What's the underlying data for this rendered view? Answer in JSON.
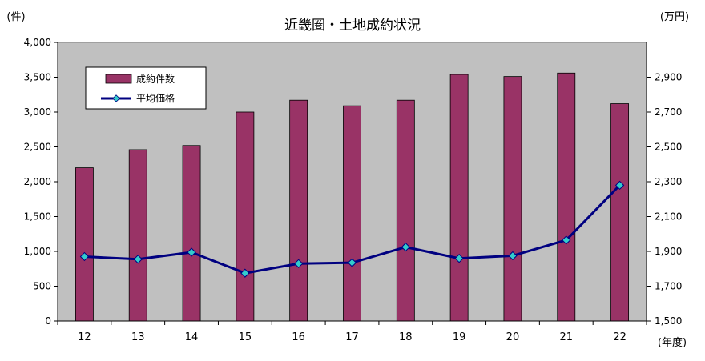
{
  "chart_data": {
    "type": "bar+line",
    "title": "近畿圏・土地成約状況",
    "y_left_unit": "(件)",
    "y_right_unit": "(万円)",
    "x_unit": "(年度)",
    "categories": [
      "12",
      "13",
      "14",
      "15",
      "16",
      "17",
      "18",
      "19",
      "20",
      "21",
      "22"
    ],
    "y_left": {
      "min": 0,
      "max": 4000,
      "ticks": [
        0,
        500,
        1000,
        1500,
        2000,
        2500,
        3000,
        3500,
        4000
      ],
      "tick_labels": [
        "0",
        "500",
        "1,000",
        "1,500",
        "2,000",
        "2,500",
        "3,000",
        "3,500",
        "4,000"
      ]
    },
    "y_right": {
      "min": 1500,
      "max": 3100,
      "ticks": [
        1500,
        1700,
        1900,
        2100,
        2300,
        2500,
        2700,
        2900
      ],
      "tick_labels": [
        "1,500",
        "1,700",
        "1,900",
        "2,100",
        "2,300",
        "2,500",
        "2,700",
        "2,900"
      ]
    },
    "series": [
      {
        "name": "成約件数",
        "type": "bar",
        "axis": "left",
        "color": "#993366",
        "values": [
          2200,
          2460,
          2520,
          3000,
          3170,
          3090,
          3170,
          3540,
          3510,
          3560,
          3120
        ]
      },
      {
        "name": "平均価格",
        "type": "line",
        "axis": "right",
        "color": "#000080",
        "marker_color": "#33CCCC",
        "values": [
          1870,
          1855,
          1895,
          1775,
          1830,
          1835,
          1925,
          1860,
          1875,
          1965,
          2280
        ]
      }
    ],
    "legend_position": "top-left",
    "plot_background": "#C0C0C0",
    "grid": false
  }
}
